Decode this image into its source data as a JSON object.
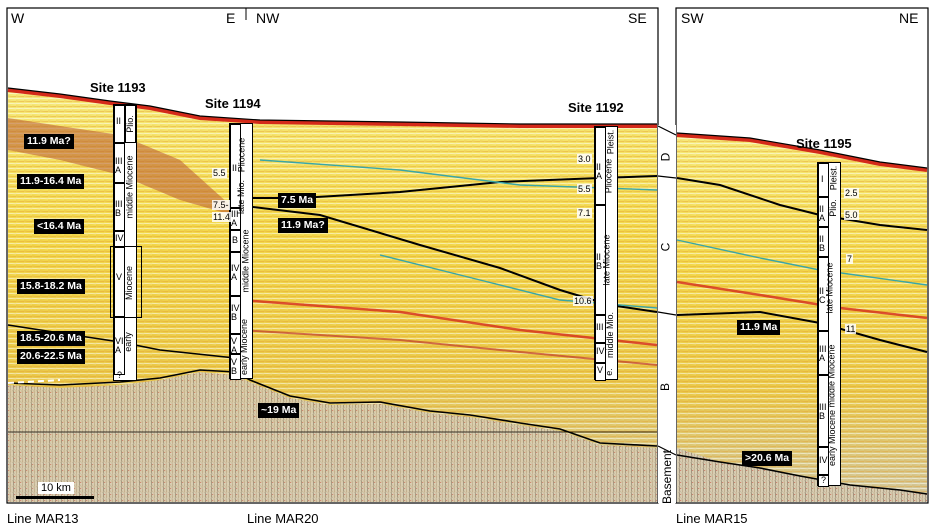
{
  "panels": {
    "left": {
      "direction_left": "W",
      "direction_right1": "E",
      "direction_left2": "NW",
      "direction_right2": "SE",
      "lines": [
        "Line MAR13",
        "Line MAR20"
      ]
    },
    "right": {
      "direction_left": "SW",
      "direction_right": "NE",
      "line": "Line MAR15"
    }
  },
  "sites": {
    "s1193": "Site 1193",
    "s1194": "Site 1194",
    "s1192": "Site 1192",
    "s1195": "Site 1195"
  },
  "ages_1193": [
    "11.9 Ma?",
    "11.9-16.4 Ma",
    "<16.4 Ma",
    "15.8-18.2 Ma",
    "18.5-20.6 Ma",
    "20.6-22.5 Ma"
  ],
  "ages_1194": [
    "7.5 Ma",
    "11.9 Ma?",
    "~19 Ma"
  ],
  "ages_1195": [
    "11.9 Ma",
    ">20.6 Ma"
  ],
  "col_1193": {
    "units": [
      "II",
      "III\nA",
      "III\nB",
      "IV",
      "V",
      "VI\nA",
      "?"
    ],
    "epochs": [
      "Plio.",
      "middle Miocene",
      "Miocene",
      "early"
    ]
  },
  "col_1194": {
    "units": [
      "II",
      "III\nA",
      "B",
      "IV\nA",
      "IV\nB",
      "V\nA",
      "V\nB"
    ],
    "epochs": [
      "Pliocene",
      "late Mio.",
      "middle Miocene",
      "early Miocene"
    ],
    "nums": [
      "5.5",
      "7.5-",
      "11.4"
    ]
  },
  "col_1192": {
    "units": [
      "II\nA",
      "II\nB",
      "III",
      "IV",
      "V"
    ],
    "epochs": [
      "Pleist.",
      "Pliocene",
      "late Miocene",
      "middle Mio.",
      "e."
    ],
    "nums": [
      "3.0",
      "5.5",
      "7.1",
      "10.6"
    ]
  },
  "col_1195": {
    "units": [
      "I",
      "II\nA",
      "II\nB",
      "II\nC",
      "III\nA",
      "III\nB",
      "IV",
      "?"
    ],
    "epochs": [
      "Pleist.",
      "Plio.",
      "late Miocene",
      "middle Miocene",
      "early Miocene"
    ],
    "nums": [
      "2.5",
      "5.0",
      "7",
      "11"
    ]
  },
  "sequences": [
    "D",
    "C",
    "B",
    "Basement"
  ],
  "scale": "10 km",
  "colors": {
    "seafloor": "#d42a1a",
    "yellow": "#f2e22a",
    "orange": "#e8962a",
    "horizon": "#000000",
    "teal": "#3aa6a6"
  }
}
